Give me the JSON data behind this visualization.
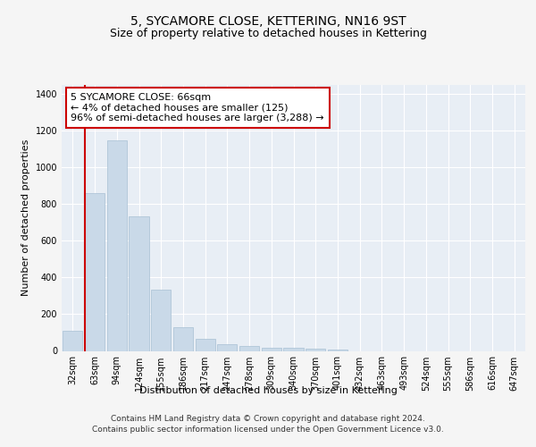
{
  "title": "5, SYCAMORE CLOSE, KETTERING, NN16 9ST",
  "subtitle": "Size of property relative to detached houses in Kettering",
  "xlabel": "Distribution of detached houses by size in Kettering",
  "ylabel": "Number of detached properties",
  "categories": [
    "32sqm",
    "63sqm",
    "94sqm",
    "124sqm",
    "155sqm",
    "186sqm",
    "217sqm",
    "247sqm",
    "278sqm",
    "309sqm",
    "340sqm",
    "370sqm",
    "401sqm",
    "432sqm",
    "463sqm",
    "493sqm",
    "524sqm",
    "555sqm",
    "586sqm",
    "616sqm",
    "647sqm"
  ],
  "values": [
    110,
    860,
    1150,
    735,
    335,
    130,
    65,
    35,
    25,
    18,
    15,
    10,
    5,
    0,
    0,
    0,
    0,
    0,
    0,
    0,
    0
  ],
  "bar_color": "#c9d9e8",
  "bar_edge_color": "#a8c0d4",
  "highlight_line_color": "#cc0000",
  "annotation_text": "5 SYCAMORE CLOSE: 66sqm\n← 4% of detached houses are smaller (125)\n96% of semi-detached houses are larger (3,288) →",
  "annotation_box_color": "#ffffff",
  "annotation_box_edge": "#cc0000",
  "ylim": [
    0,
    1450
  ],
  "yticks": [
    0,
    200,
    400,
    600,
    800,
    1000,
    1200,
    1400
  ],
  "plot_bg_color": "#e8eef5",
  "fig_bg_color": "#f5f5f5",
  "footer_line1": "Contains HM Land Registry data © Crown copyright and database right 2024.",
  "footer_line2": "Contains public sector information licensed under the Open Government Licence v3.0.",
  "title_fontsize": 10,
  "subtitle_fontsize": 9,
  "axis_label_fontsize": 8,
  "tick_fontsize": 7,
  "annotation_fontsize": 8,
  "footer_fontsize": 6.5
}
